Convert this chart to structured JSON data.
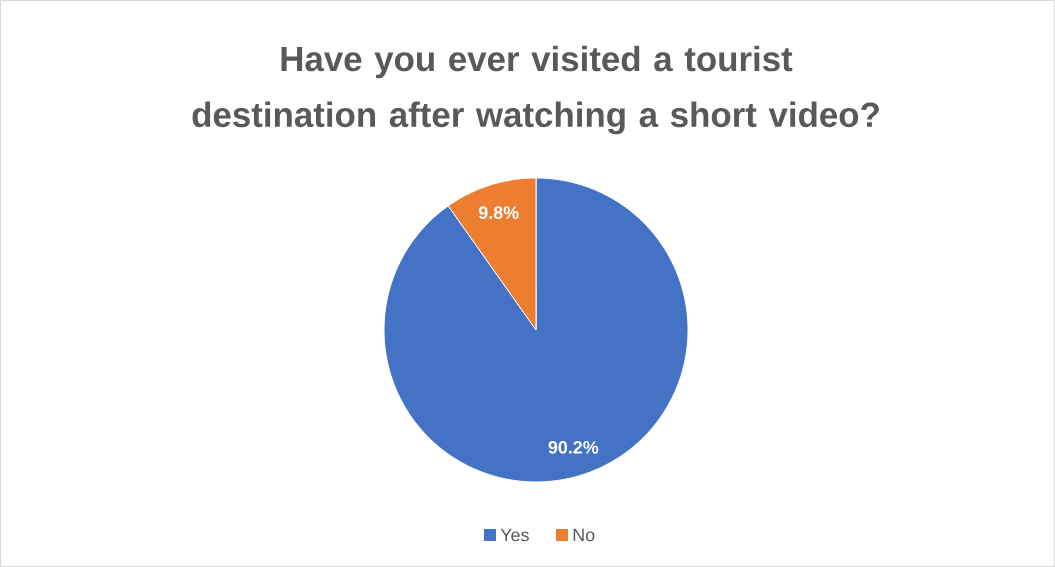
{
  "chart_data": {
    "type": "pie",
    "title": "Have you ever visited a tourist destination after watching a short video?",
    "categories": [
      "Yes",
      "No"
    ],
    "values": [
      90.2,
      9.8
    ],
    "colors": [
      "#4472c4",
      "#ed7d31"
    ],
    "value_labels": [
      "90.2%",
      "9.8%"
    ],
    "legend": "bottom"
  }
}
